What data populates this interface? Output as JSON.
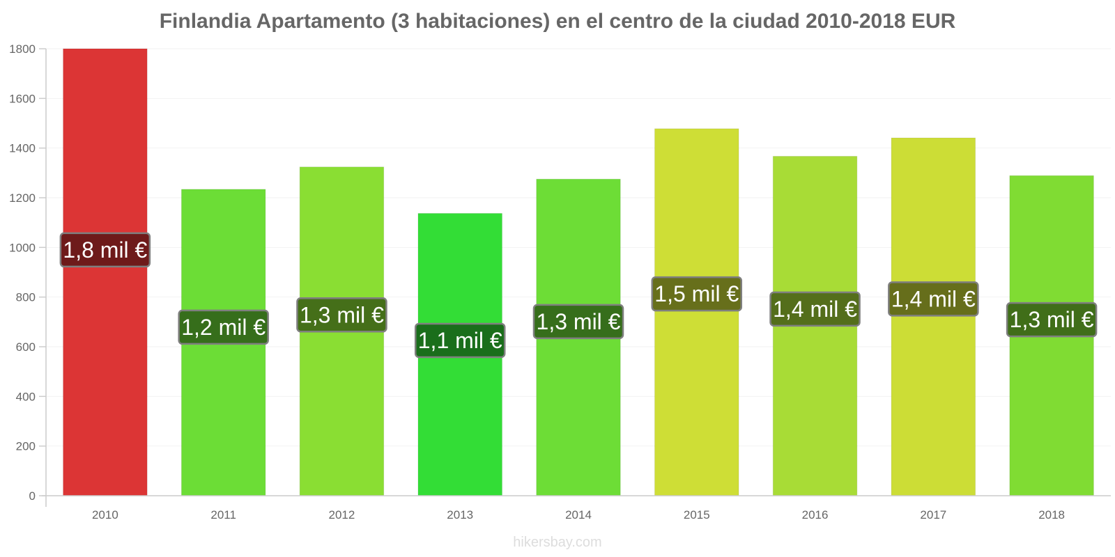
{
  "chart_data": {
    "type": "bar",
    "title": "Finlandia Apartamento (3 habitaciones) en el centro de la ciudad 2010-2018 EUR",
    "xlabel": "",
    "ylabel": "",
    "ylim": [
      0,
      1800
    ],
    "yticks": [
      0,
      200,
      400,
      600,
      800,
      1000,
      1200,
      1400,
      1600,
      1800
    ],
    "grid": true,
    "categories": [
      "2010",
      "2011",
      "2012",
      "2013",
      "2014",
      "2015",
      "2016",
      "2017",
      "2018"
    ],
    "values": [
      1800,
      1234,
      1324,
      1137,
      1275,
      1478,
      1367,
      1441,
      1289
    ],
    "labels": [
      "1,8 mil €",
      "1,2 mil €",
      "1,3 mil €",
      "1,1 mil €",
      "1,3 mil €",
      "1,5 mil €",
      "1,4 mil €",
      "1,4 mil €",
      "1,3 mil €"
    ],
    "bar_colors": [
      "#dc3535",
      "#6cdd36",
      "#8ade33",
      "#33dd36",
      "#6ddd36",
      "#cede36",
      "#a8dc36",
      "#ccdd36",
      "#80dc33"
    ],
    "label_bg_colors": [
      "#6e1a1a",
      "#366e1b",
      "#456f19",
      "#1a6e1b",
      "#366e1b",
      "#676f1b",
      "#546e1b",
      "#666e1b",
      "#406e19"
    ]
  },
  "watermark": "hikersbay.com"
}
